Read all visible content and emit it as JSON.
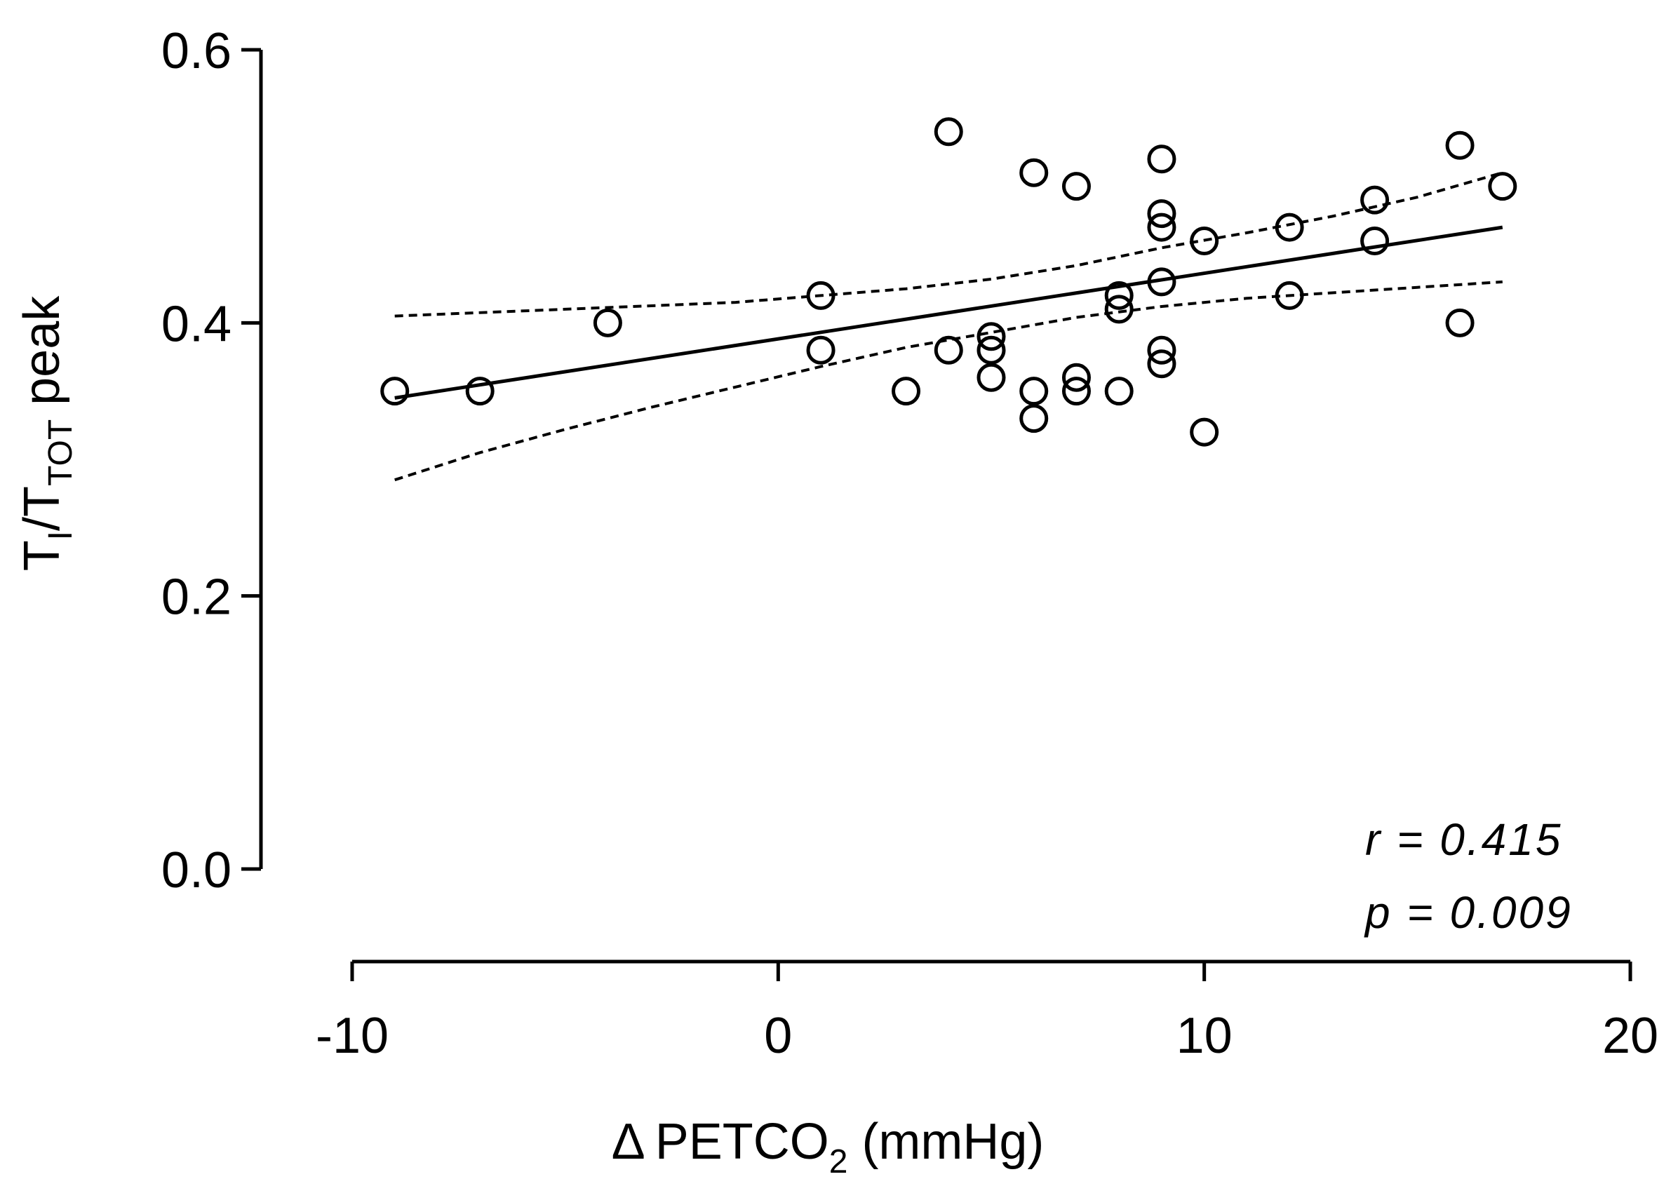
{
  "chart_data": {
    "type": "scatter",
    "title": "",
    "xlabel": {
      "delta": "Δ",
      "main": "PETCO",
      "sub": "2",
      "unit": "(mmHg)"
    },
    "ylabel": {
      "t1": "T",
      "sub1": "I",
      "sep": "/T",
      "sub2": "TOT",
      "rest": "peak"
    },
    "xlim": [
      -10,
      20
    ],
    "ylim": [
      0.0,
      0.6
    ],
    "xticks": [
      -10,
      0,
      10,
      20
    ],
    "xtick_labels": [
      "-10",
      "0",
      "10",
      "20"
    ],
    "yticks": [
      0.0,
      0.2,
      0.4,
      0.6
    ],
    "ytick_labels": [
      "0.0",
      "0.2",
      "0.4",
      "0.6"
    ],
    "grid": false,
    "points": [
      {
        "x": -9,
        "y": 0.35
      },
      {
        "x": -7,
        "y": 0.35
      },
      {
        "x": -4,
        "y": 0.4
      },
      {
        "x": 1,
        "y": 0.42
      },
      {
        "x": 1,
        "y": 0.38
      },
      {
        "x": 3,
        "y": 0.35
      },
      {
        "x": 4,
        "y": 0.54
      },
      {
        "x": 4,
        "y": 0.38
      },
      {
        "x": 5,
        "y": 0.39
      },
      {
        "x": 5,
        "y": 0.38
      },
      {
        "x": 5,
        "y": 0.36
      },
      {
        "x": 6,
        "y": 0.51
      },
      {
        "x": 6,
        "y": 0.35
      },
      {
        "x": 6,
        "y": 0.33
      },
      {
        "x": 7,
        "y": 0.5
      },
      {
        "x": 7,
        "y": 0.36
      },
      {
        "x": 7,
        "y": 0.35
      },
      {
        "x": 8,
        "y": 0.42
      },
      {
        "x": 8,
        "y": 0.41
      },
      {
        "x": 8,
        "y": 0.35
      },
      {
        "x": 9,
        "y": 0.52
      },
      {
        "x": 9,
        "y": 0.48
      },
      {
        "x": 9,
        "y": 0.47
      },
      {
        "x": 9,
        "y": 0.43
      },
      {
        "x": 9,
        "y": 0.38
      },
      {
        "x": 9,
        "y": 0.37
      },
      {
        "x": 10,
        "y": 0.46
      },
      {
        "x": 10,
        "y": 0.32
      },
      {
        "x": 12,
        "y": 0.47
      },
      {
        "x": 12,
        "y": 0.42
      },
      {
        "x": 14,
        "y": 0.49
      },
      {
        "x": 14,
        "y": 0.46
      },
      {
        "x": 16,
        "y": 0.53
      },
      {
        "x": 16,
        "y": 0.4
      },
      {
        "x": 17,
        "y": 0.5
      }
    ],
    "fit_line": {
      "x": [
        -9,
        17
      ],
      "y": [
        0.345,
        0.47
      ]
    },
    "ci_upper": {
      "x": [
        -9,
        -5,
        -1,
        1,
        3,
        5,
        7,
        9,
        11,
        13,
        15,
        17
      ],
      "y": [
        0.405,
        0.41,
        0.415,
        0.42,
        0.425,
        0.432,
        0.442,
        0.455,
        0.466,
        0.478,
        0.492,
        0.51
      ]
    },
    "ci_lower": {
      "x": [
        -9,
        -7,
        -5,
        -3,
        -1,
        1,
        3,
        5,
        7,
        9,
        11,
        13,
        15,
        17
      ],
      "y": [
        0.285,
        0.305,
        0.322,
        0.338,
        0.353,
        0.368,
        0.382,
        0.393,
        0.404,
        0.412,
        0.418,
        0.422,
        0.426,
        0.43
      ]
    },
    "annotations": {
      "r": "r = 0.415",
      "p": "p = 0.009"
    }
  }
}
